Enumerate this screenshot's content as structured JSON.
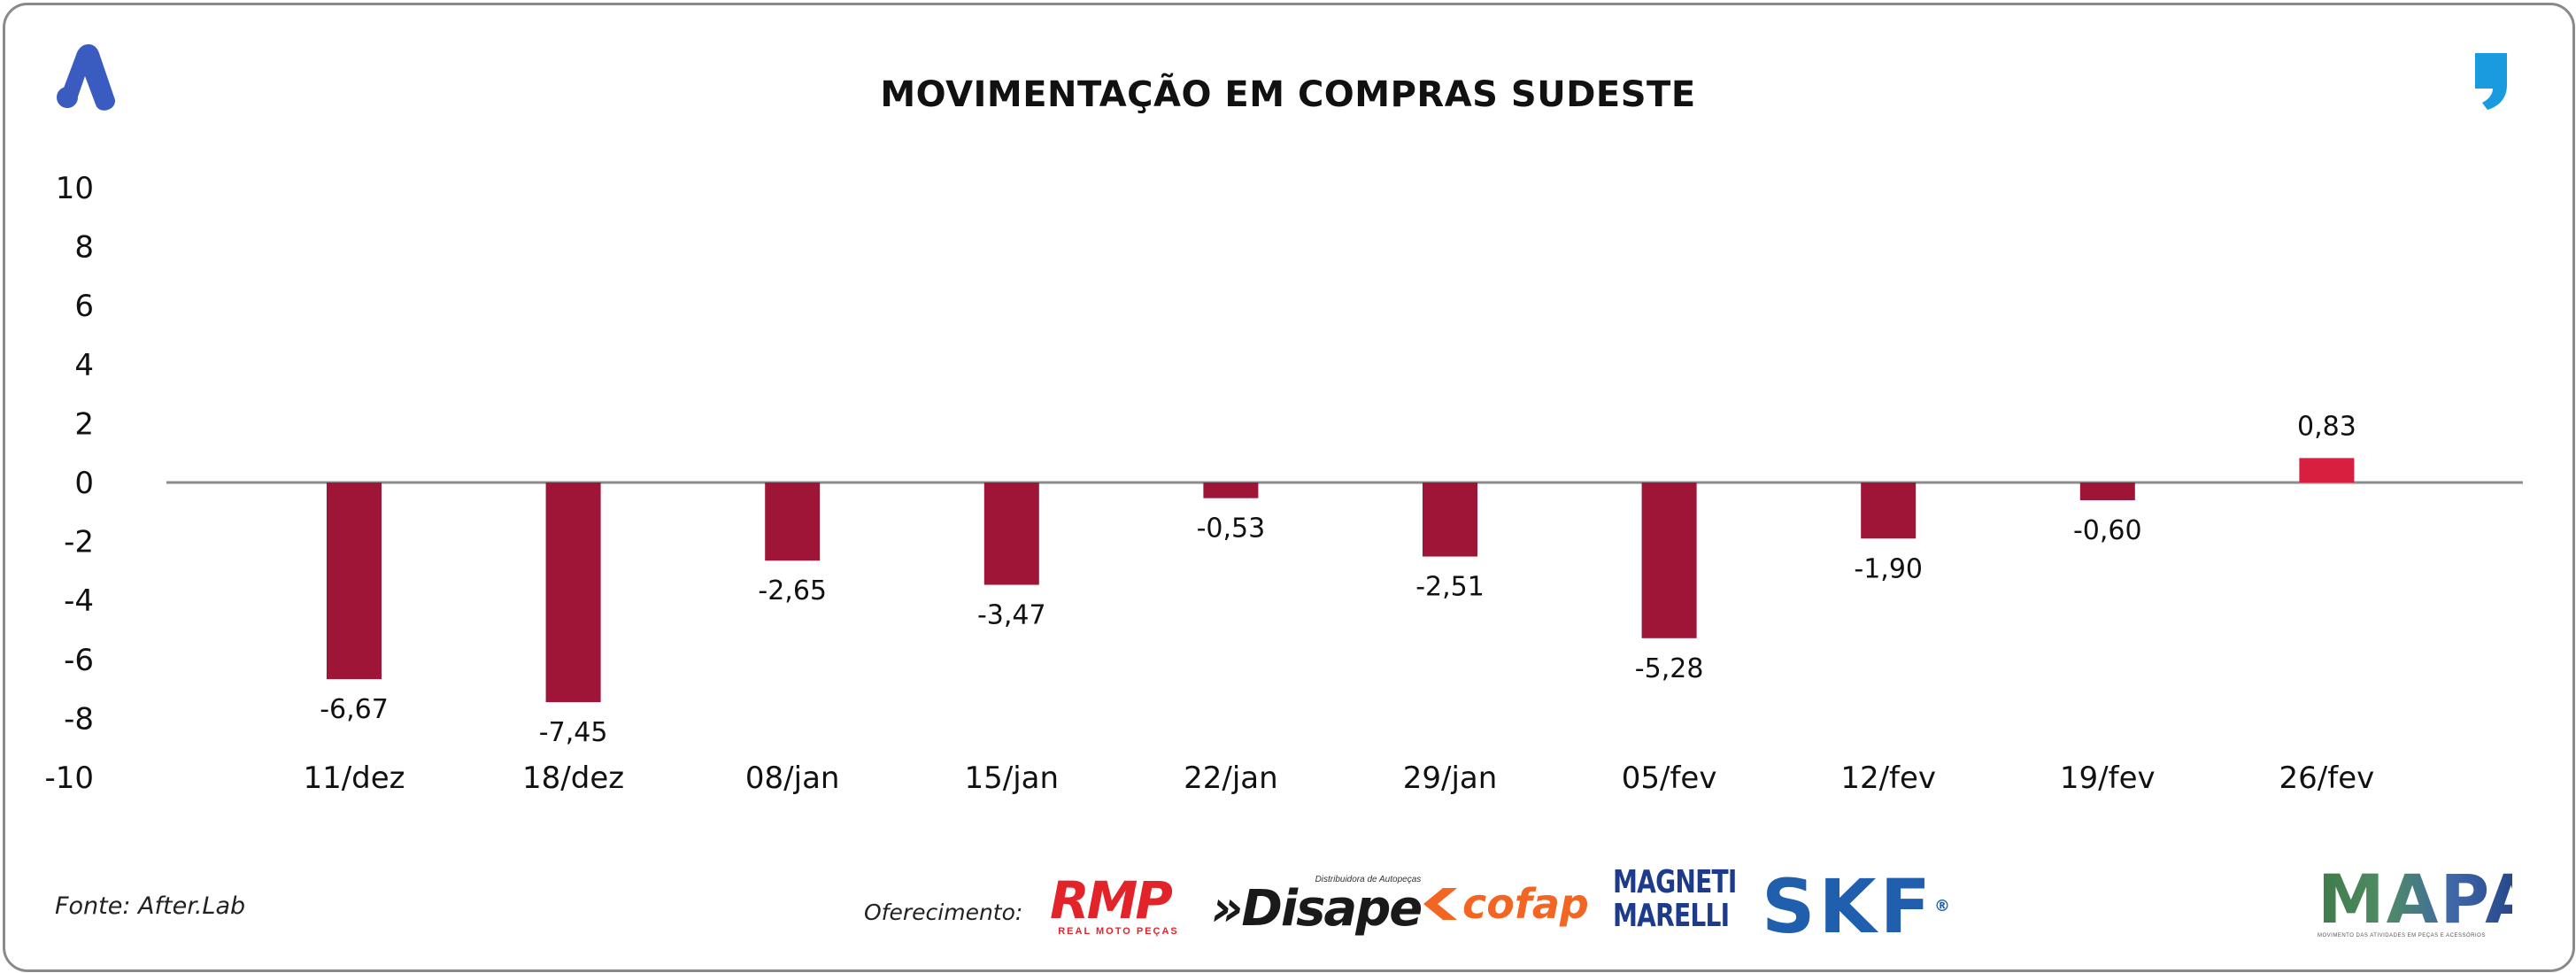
{
  "header": {
    "title": "MOVIMENTAÇÃO EM COMPRAS SUDESTE"
  },
  "icons": {
    "brand_logo": "a-logo-icon",
    "brand_color": "#3a5bbf",
    "quote_mark": "quote-icon",
    "quote_color": "#1a9be0"
  },
  "chart_data": {
    "type": "bar",
    "title": "MOVIMENTAÇÃO EM COMPRAS SUDESTE",
    "xlabel": "",
    "ylabel": "",
    "ylim": [
      -10,
      10
    ],
    "yticks": [
      10,
      8,
      6,
      4,
      2,
      0,
      -2,
      -4,
      -6,
      -8,
      -10
    ],
    "ytick_labels": [
      "10",
      "8",
      "6",
      "4",
      "2",
      "0",
      "-2",
      "-4",
      "-6",
      "-8",
      "-10"
    ],
    "grid": false,
    "categories": [
      "11/dez",
      "18/dez",
      "08/jan",
      "15/jan",
      "22/jan",
      "29/jan",
      "05/fev",
      "12/fev",
      "19/fev",
      "26/fev"
    ],
    "values": [
      -6.67,
      -7.45,
      -2.65,
      -3.47,
      -0.53,
      -2.51,
      -5.28,
      -1.9,
      -0.6,
      0.83
    ],
    "value_labels": [
      "-6,67",
      "-7,45",
      "-2,65",
      "-3,47",
      "-0,53",
      "-2,51",
      "-5,28",
      "-1,90",
      "-0,60",
      "0,83"
    ],
    "negative_color": "#9e1538",
    "positive_color": "#d81f3f",
    "zero_line_color": "#8c8c8c"
  },
  "footer": {
    "source": "Fonte: After.Lab",
    "sponsor_label": "Oferecimento:",
    "sponsors": {
      "rmp": "RMP",
      "rmp_sub": "REAL MOTO PEÇAS",
      "disape_sub": "Distribuidora de Autopeças",
      "disape": "»Disape",
      "cofap": "cofap",
      "magneti_line1": "MAGNETI",
      "magneti_line2": "MARELLI",
      "skf": "SKF",
      "skf_reg": "®"
    },
    "mapa": "MAPA",
    "mapa_sub": "MOVIMENTO DAS ATIVIDADES EM PEÇAS E ACESSÓRIOS"
  }
}
